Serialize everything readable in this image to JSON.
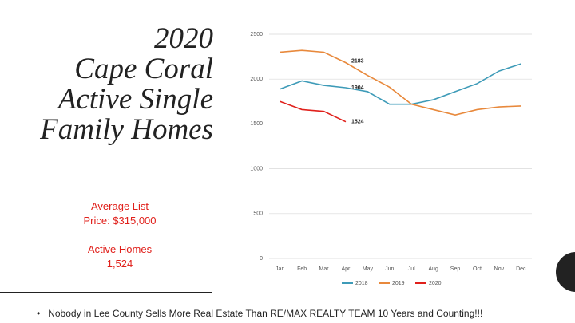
{
  "slide": {
    "title_lines": [
      "2020",
      "Cape Coral",
      "Active Single",
      "Family Homes"
    ],
    "stats": [
      "Average List",
      "Price: $315,000",
      "Active Homes",
      "1,524"
    ],
    "footer": "Nobody in Lee County Sells More Real Estate Than RE/MAX REALTY TEAM  10 Years and Counting!!!"
  },
  "chart_data": {
    "type": "line",
    "categories": [
      "Jan",
      "Feb",
      "Mar",
      "Apr",
      "May",
      "Jun",
      "Jul",
      "Aug",
      "Sep",
      "Oct",
      "Nov",
      "Dec"
    ],
    "series": [
      {
        "name": "2018",
        "color": "#3e9bb8",
        "values": [
          1890,
          1980,
          1930,
          1904,
          1860,
          1720,
          1720,
          1770,
          1860,
          1950,
          2090,
          2170
        ]
      },
      {
        "name": "2019",
        "color": "#e8893c",
        "values": [
          2300,
          2320,
          2300,
          2183,
          2040,
          1910,
          1720,
          1660,
          1600,
          1660,
          1690,
          1700
        ]
      },
      {
        "name": "2020",
        "color": "#e0201b",
        "values": [
          1750,
          1660,
          1640,
          1524,
          null,
          null,
          null,
          null,
          null,
          null,
          null,
          null
        ]
      }
    ],
    "ylim": [
      0,
      2500
    ],
    "yticks": [
      0,
      500,
      1000,
      1500,
      2000,
      2500
    ],
    "grid": true,
    "legend": "bottom"
  }
}
